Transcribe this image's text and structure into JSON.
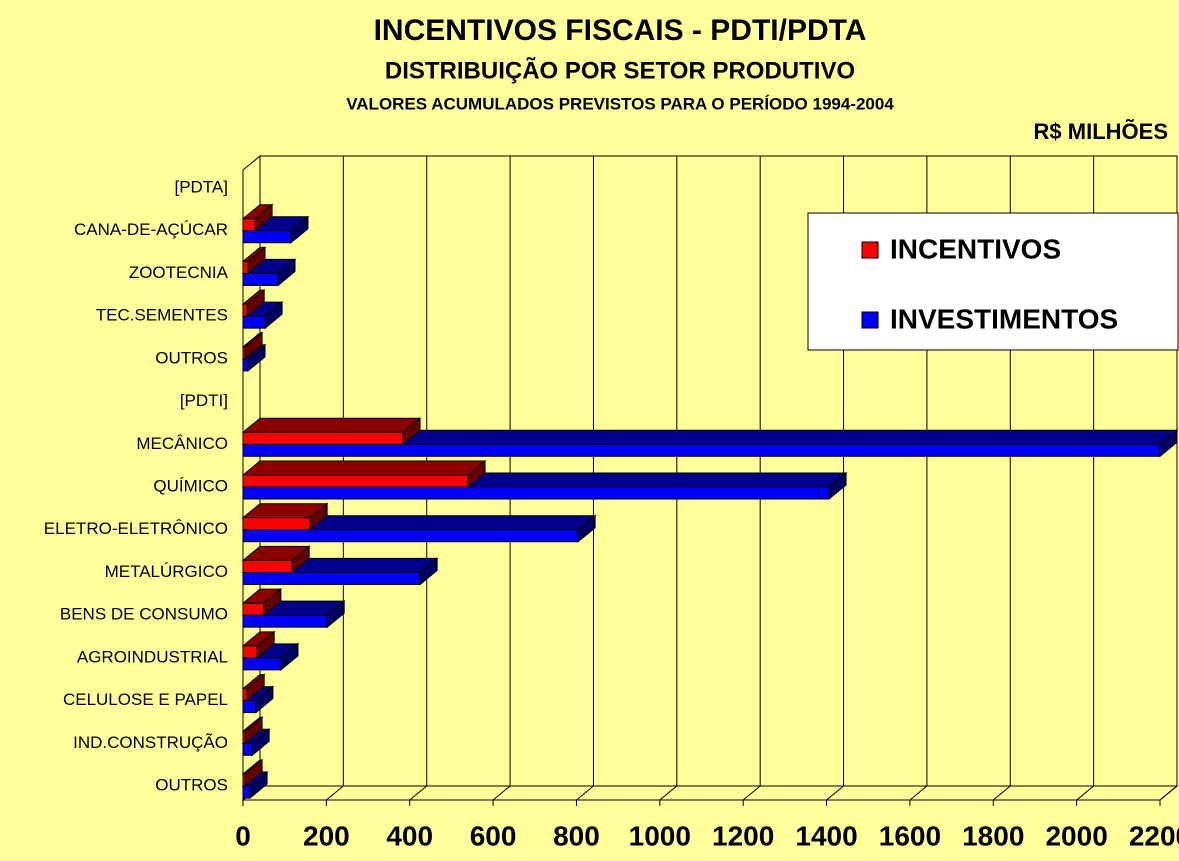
{
  "chart_data": {
    "type": "bar3d_horizontal",
    "title": "INCENTIVOS FISCAIS - PDTI/PDTA",
    "subtitle": "DISTRIBUIÇÃO POR SETOR PRODUTIVO",
    "note": "VALORES ACUMULADOS PREVISTOS PARA O PERÍODO 1994-2004",
    "unit": "R$ MILHÕES",
    "categories": [
      "[PDTA]",
      "CANA-DE-AÇÚCAR",
      "ZOOTECNIA",
      "TEC.SEMENTES",
      "OUTROS",
      "[PDTI]",
      "MECÂNICO",
      "QUÍMICO",
      "ELETRO-ELETRÔNICO",
      "METALÚRGICO",
      "BENS DE CONSUMO",
      "AGROINDUSTRIAL",
      "CELULOSE E PAPEL",
      "IND.CONSTRUÇÃO",
      "OUTROS"
    ],
    "series": [
      {
        "name": "INCENTIVOS",
        "color": "#FF0000",
        "values": [
          null,
          29,
          12,
          10,
          5,
          null,
          384,
          540,
          161,
          118,
          50,
          34,
          10,
          5,
          5
        ]
      },
      {
        "name": "INVESTIMENTOS",
        "color": "#0000FF",
        "values": [
          null,
          115,
          84,
          53,
          12,
          null,
          2200,
          1406,
          804,
          425,
          202,
          91,
          31,
          22,
          17
        ]
      }
    ],
    "xlim": [
      0,
      2200
    ],
    "xticks": [
      0,
      200,
      400,
      600,
      800,
      1000,
      1200,
      1400,
      1600,
      1800,
      2000,
      2200
    ],
    "grid": true,
    "legend": "upper right"
  }
}
